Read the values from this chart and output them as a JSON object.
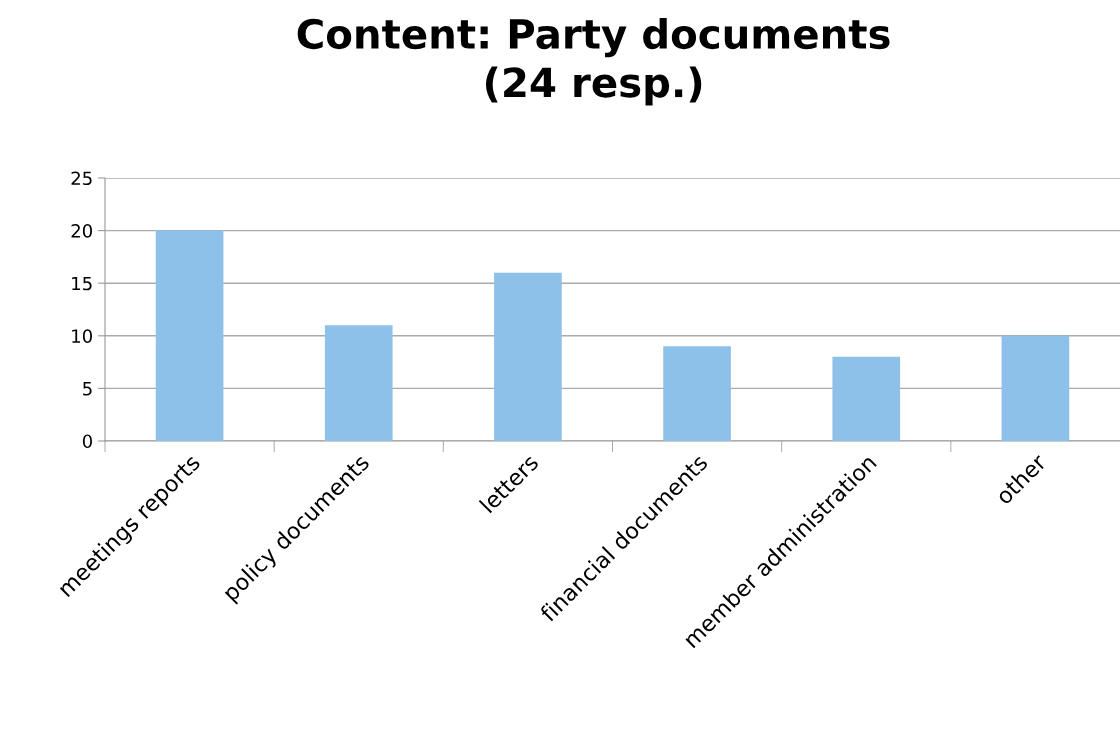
{
  "chart_data": {
    "type": "bar",
    "title": "Content: Party documents\n(24 resp.)",
    "categories": [
      "meetings reports",
      "policy documents",
      "letters",
      "financial documents",
      "member administration",
      "other"
    ],
    "values": [
      20,
      11,
      16,
      9,
      8,
      10
    ],
    "color": "#8ec1ea",
    "ylim": [
      0,
      25
    ],
    "yticks": [
      0,
      5,
      10,
      15,
      20,
      25
    ],
    "grid": "y"
  }
}
